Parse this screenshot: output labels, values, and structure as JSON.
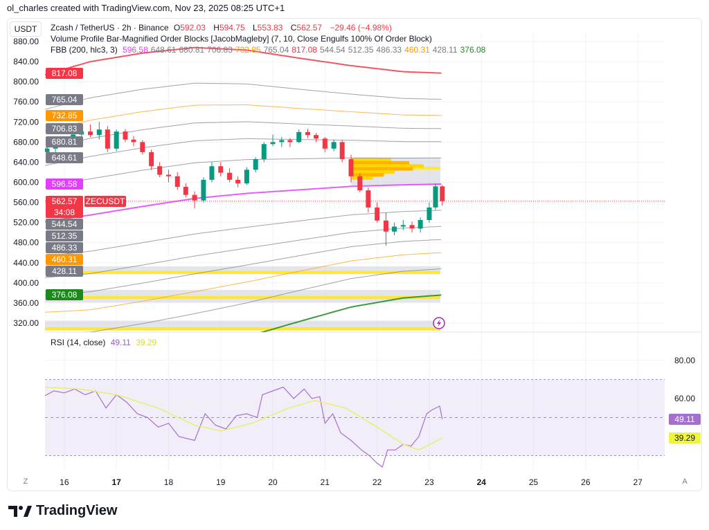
{
  "credit": "ol_charles created with TradingView.com, Nov 23, 2025 08:25 UTC+1",
  "currency": "USDT",
  "legend": {
    "symbol": "Zcash / TetherUS · 2h · Binance",
    "o_label": "O",
    "o": "592.03",
    "h_label": "H",
    "h": "594.75",
    "l_label": "L",
    "l": "553.83",
    "c_label": "C",
    "c": "562.57",
    "change": "−29.46 (−4.98%)",
    "indicator2": "Volume Profile Bar-Magnified Order Blocks [JacobMagleby] (7, 10, Close Engulfs 100% Of Order Block)",
    "fbb_name": "FBB (200, hlc3, 3)",
    "fbb_values": [
      "596.58",
      "648.61",
      "680.81",
      "706.83",
      "732.85",
      "765.04",
      "817.08",
      "544.54",
      "512.35",
      "486.33",
      "460.31",
      "428.11",
      "376.08"
    ],
    "fbb_value_colors": [
      "#e040fb",
      "#787b86",
      "#787b86",
      "#787b86",
      "#ff9800",
      "#787b86",
      "#f23645",
      "#787b86",
      "#787b86",
      "#787b86",
      "#ff9800",
      "#787b86",
      "#1b8a1b"
    ]
  },
  "symbol_tag": "ZECUSDT",
  "countdown": "34:08",
  "colors": {
    "up": "#089981",
    "down": "#f23645",
    "basis": "#e040fb",
    "upper": "#f23645",
    "lower": "#1b8a1b",
    "fib": "#9598a1",
    "orange": "#ff9800",
    "rsi": "#a56fd0",
    "rsi_ma": "#e8f06a",
    "zone": "#d1d4dc",
    "zone_line": "#ffe733"
  },
  "chart_data": [
    {
      "type": "candlestick",
      "title": "Zcash / TetherUS · 2h · Binance",
      "price_ticks": [
        880,
        840,
        800,
        760,
        720,
        680,
        640,
        600,
        560,
        520,
        480,
        440,
        400,
        360,
        320
      ],
      "price_tick_labels": [
        "880.00",
        "840.00",
        "800.00",
        "760.00",
        "720.00",
        "680.00",
        "640.00",
        "600.00",
        "560.00",
        "520.00",
        "480.00",
        "440.00",
        "400.00",
        "360.00",
        "320.00"
      ],
      "ylim": [
        300,
        890
      ],
      "x_ticks": [
        16,
        17,
        18,
        19,
        20,
        21,
        22,
        23,
        24,
        25,
        26,
        27
      ],
      "x_tick_labels": [
        "16",
        "17",
        "18",
        "19",
        "20",
        "21",
        "22",
        "23",
        "24",
        "25",
        "26",
        "27"
      ],
      "x_bold": [
        "17",
        "24"
      ],
      "xlim": [
        15.63,
        27.7
      ],
      "candles_t_o_h_l_c": [
        [
          15.67,
          660,
          672,
          640,
          667
        ],
        [
          15.83,
          667,
          685,
          660,
          680
        ],
        [
          16.0,
          680,
          690,
          672,
          676
        ],
        [
          16.17,
          676,
          700,
          670,
          695
        ],
        [
          16.33,
          695,
          710,
          688,
          701
        ],
        [
          16.5,
          701,
          715,
          690,
          694
        ],
        [
          16.67,
          694,
          720,
          685,
          705
        ],
        [
          16.83,
          705,
          712,
          660,
          667
        ],
        [
          17.0,
          667,
          705,
          662,
          701
        ],
        [
          17.17,
          701,
          706,
          680,
          685
        ],
        [
          17.33,
          685,
          692,
          672,
          680
        ],
        [
          17.5,
          680,
          684,
          655,
          660
        ],
        [
          17.67,
          660,
          665,
          625,
          632
        ],
        [
          17.83,
          632,
          640,
          610,
          615
        ],
        [
          18.0,
          615,
          625,
          600,
          612
        ],
        [
          18.17,
          612,
          620,
          585,
          591
        ],
        [
          18.33,
          591,
          598,
          570,
          575
        ],
        [
          18.5,
          575,
          582,
          548,
          564
        ],
        [
          18.67,
          564,
          610,
          560,
          605
        ],
        [
          18.83,
          605,
          640,
          600,
          632
        ],
        [
          19.0,
          632,
          640,
          612,
          619
        ],
        [
          19.17,
          619,
          628,
          600,
          605
        ],
        [
          19.33,
          605,
          612,
          590,
          598
        ],
        [
          19.5,
          598,
          630,
          595,
          625
        ],
        [
          19.67,
          625,
          650,
          620,
          646
        ],
        [
          19.83,
          646,
          680,
          640,
          676
        ],
        [
          20.0,
          676,
          695,
          672,
          680
        ],
        [
          20.17,
          680,
          690,
          670,
          684
        ],
        [
          20.33,
          684,
          688,
          670,
          680
        ],
        [
          20.5,
          680,
          705,
          678,
          700
        ],
        [
          20.67,
          700,
          706,
          688,
          694
        ],
        [
          20.83,
          694,
          698,
          680,
          687
        ],
        [
          21.0,
          687,
          690,
          660,
          667
        ],
        [
          21.17,
          667,
          685,
          662,
          680
        ],
        [
          21.33,
          680,
          684,
          640,
          646
        ],
        [
          21.5,
          646,
          655,
          600,
          612
        ],
        [
          21.67,
          612,
          618,
          580,
          584
        ],
        [
          21.83,
          584,
          590,
          540,
          550
        ],
        [
          22.0,
          550,
          560,
          520,
          524
        ],
        [
          22.17,
          524,
          540,
          474,
          502
        ],
        [
          22.33,
          502,
          520,
          495,
          512
        ],
        [
          22.5,
          512,
          525,
          505,
          515
        ],
        [
          22.67,
          515,
          522,
          500,
          508
        ],
        [
          22.83,
          508,
          530,
          500,
          525
        ],
        [
          23.0,
          525,
          560,
          520,
          550
        ],
        [
          23.12,
          550,
          598,
          545,
          592
        ],
        [
          23.25,
          592.03,
          594.75,
          553.83,
          562.57
        ]
      ],
      "last_price": 562.57,
      "fbb": {
        "t": [
          15.63,
          16.5,
          17.5,
          18.5,
          19.5,
          20.5,
          21.5,
          22.5,
          23.25
        ],
        "basis": [
          522,
          535,
          552,
          568,
          578,
          585,
          592,
          595,
          596.58
        ],
        "deviation": [
          292,
          305,
          305,
          300,
          285,
          262,
          240,
          225,
          220.5
        ],
        "levels": [
          1,
          0.764,
          0.618,
          0.5,
          0.382,
          0.236,
          0,
          -0.236,
          -0.382,
          -0.5,
          -0.618,
          -0.764,
          -1
        ],
        "level_values": [
          "817.08",
          "765.04",
          "732.85",
          "706.83",
          "680.81",
          "648.61",
          "596.58",
          "544.54",
          "512.35",
          "486.33",
          "460.31",
          "428.11",
          "376.08"
        ],
        "level_colors": [
          "#f23645",
          "#787b86",
          "#ff9800",
          "#787b86",
          "#787b86",
          "#787b86",
          "#e040fb",
          "#787b86",
          "#787b86",
          "#787b86",
          "#ff9800",
          "#787b86",
          "#1b8a1b"
        ]
      },
      "order_blocks": [
        {
          "from_t": 21.5,
          "top": 649,
          "bottom": 594,
          "line": 628
        },
        {
          "from_t": 15.63,
          "top": 433,
          "bottom": 417,
          "line": 421
        },
        {
          "from_t": 15.63,
          "top": 386,
          "bottom": 361,
          "line": 371
        },
        {
          "from_t": 15.63,
          "top": 325,
          "bottom": 305,
          "line": 309
        }
      ],
      "volume_profile": {
        "from_t": 21.5,
        "prices": [
          644,
          638,
          632,
          626,
          620,
          614,
          608
        ],
        "relative": [
          0.55,
          0.8,
          1.0,
          0.85,
          0.6,
          0.45,
          0.3
        ]
      }
    },
    {
      "type": "line",
      "title": "RSI (14, close)",
      "rsi_value": "49.11",
      "ma_value": "39.29",
      "y_ticks": [
        "80.00",
        "60.00"
      ],
      "ylim": [
        20,
        90
      ],
      "bands": [
        70,
        50,
        30
      ],
      "series": [
        {
          "t": [
            15.63,
            15.8,
            16.0,
            16.2,
            16.4,
            16.6,
            16.8,
            17.0,
            17.2,
            17.4,
            17.6,
            17.8,
            18.0,
            18.2,
            18.5,
            18.7,
            18.9,
            19.1,
            19.3,
            19.5,
            19.7,
            19.8,
            20.0,
            20.2,
            20.4,
            20.6,
            20.75,
            20.9,
            21.0,
            21.15,
            21.3,
            21.5,
            21.7,
            21.85,
            22.0,
            22.1,
            22.2,
            22.35,
            22.5,
            22.65,
            22.8,
            22.95,
            23.05,
            23.2,
            23.25
          ],
          "values": [
            61.5,
            64,
            63,
            65,
            62,
            64,
            55,
            62,
            58,
            52,
            50,
            45,
            47,
            40,
            38,
            52,
            46,
            44,
            51,
            52,
            50,
            62,
            64,
            66,
            60,
            65,
            60,
            61,
            47,
            52,
            42,
            38,
            33,
            30,
            26,
            24,
            33,
            33,
            36,
            35,
            40,
            52,
            54,
            56,
            49.11
          ]
        },
        {
          "t": [
            15.63,
            16.3,
            17.0,
            17.8,
            18.5,
            19.0,
            19.6,
            20.3,
            20.8,
            21.4,
            22.0,
            22.5,
            22.8,
            23.25
          ],
          "values": [
            66,
            65,
            62,
            55,
            46,
            43,
            47,
            55,
            59,
            55,
            45,
            36,
            33,
            39.29
          ]
        }
      ]
    }
  ],
  "axis_buttons": {
    "left": "Z",
    "right": "A"
  },
  "footer": {
    "brand": "TradingView"
  },
  "icons": {
    "alert": "lightning-icon",
    "logo": "tradingview-logo"
  }
}
